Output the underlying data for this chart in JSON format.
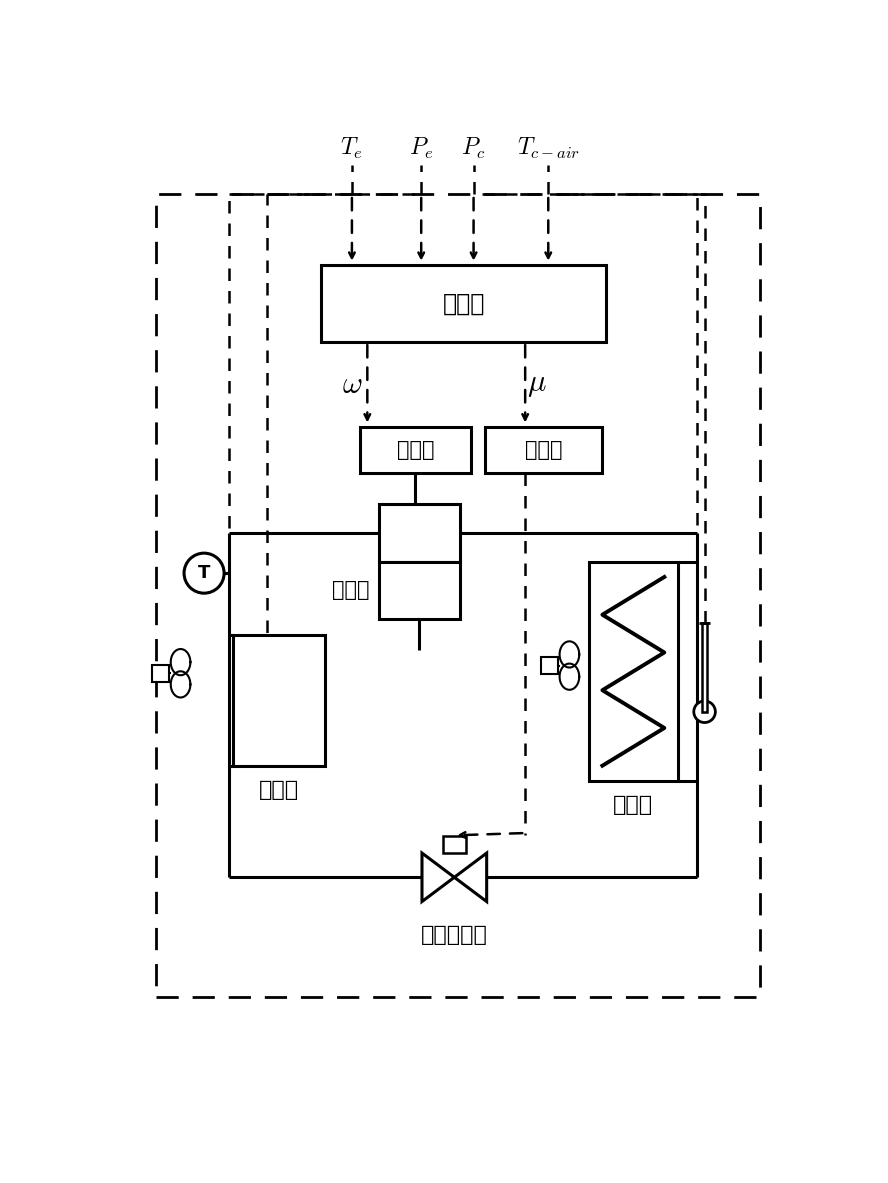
{
  "bg_color": "#ffffff",
  "controller_label": "控制器",
  "inverter_label": "变频器",
  "driver_label": "驱动器",
  "compressor_label": "压缩机",
  "evaporator_label": "蒸发器",
  "condenser_label": "冷凝器",
  "expansion_label": "电子膨胀阀",
  "fig_w": 8.88,
  "fig_h": 11.83,
  "dpi": 100
}
